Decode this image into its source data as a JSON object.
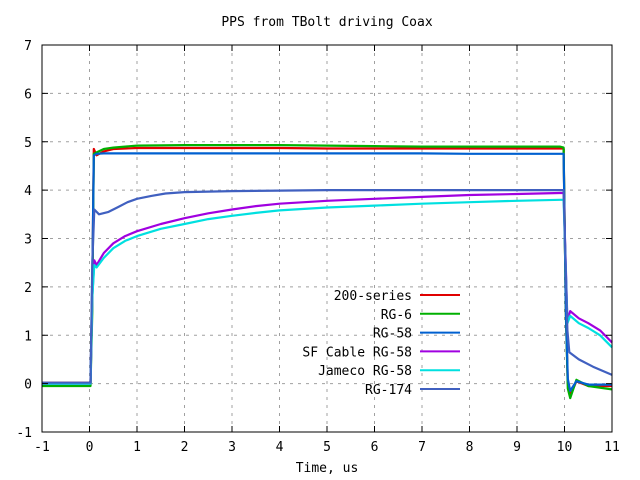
{
  "chart_data": {
    "type": "line",
    "title": "PPS from TBolt driving Coax",
    "xlabel": "Time, us",
    "ylabel": "",
    "xlim": [
      -1,
      11
    ],
    "ylim": [
      -1,
      7
    ],
    "xticks": [
      -1,
      0,
      1,
      2,
      3,
      4,
      5,
      6,
      7,
      8,
      9,
      10,
      11
    ],
    "yticks": [
      -1,
      0,
      1,
      2,
      3,
      4,
      5,
      6,
      7
    ],
    "grid": true,
    "legend_position": "center-bottom",
    "series": [
      {
        "name": "200-series",
        "color": "#e00000",
        "points": [
          [
            -1,
            0.02
          ],
          [
            0.02,
            0.02
          ],
          [
            0.06,
            2.0
          ],
          [
            0.09,
            4.85
          ],
          [
            0.15,
            4.72
          ],
          [
            0.3,
            4.8
          ],
          [
            0.5,
            4.85
          ],
          [
            1,
            4.87
          ],
          [
            2,
            4.87
          ],
          [
            3,
            4.87
          ],
          [
            4,
            4.87
          ],
          [
            5,
            4.86
          ],
          [
            6,
            4.86
          ],
          [
            7,
            4.86
          ],
          [
            8,
            4.86
          ],
          [
            9,
            4.86
          ],
          [
            9.9,
            4.86
          ],
          [
            9.98,
            4.86
          ],
          [
            10.03,
            1.5
          ],
          [
            10.07,
            0.0
          ],
          [
            10.12,
            -0.25
          ],
          [
            10.25,
            0.05
          ],
          [
            10.5,
            -0.05
          ],
          [
            11,
            -0.05
          ]
        ]
      },
      {
        "name": "RG-6",
        "color": "#00b000",
        "points": [
          [
            -1,
            -0.05
          ],
          [
            0.02,
            -0.05
          ],
          [
            0.06,
            1.5
          ],
          [
            0.09,
            4.75
          ],
          [
            0.15,
            4.78
          ],
          [
            0.3,
            4.85
          ],
          [
            0.5,
            4.88
          ],
          [
            1,
            4.92
          ],
          [
            2,
            4.93
          ],
          [
            3,
            4.93
          ],
          [
            4,
            4.93
          ],
          [
            5,
            4.92
          ],
          [
            6,
            4.91
          ],
          [
            7,
            4.9
          ],
          [
            8,
            4.9
          ],
          [
            9,
            4.9
          ],
          [
            9.9,
            4.9
          ],
          [
            9.98,
            4.88
          ],
          [
            10.03,
            1.4
          ],
          [
            10.07,
            -0.1
          ],
          [
            10.12,
            -0.3
          ],
          [
            10.25,
            0.08
          ],
          [
            10.5,
            -0.05
          ],
          [
            11,
            -0.12
          ]
        ]
      },
      {
        "name": "RG-58",
        "color": "#0060d0",
        "points": [
          [
            -1,
            0.0
          ],
          [
            0.02,
            0.0
          ],
          [
            0.06,
            2.2
          ],
          [
            0.09,
            4.72
          ],
          [
            0.15,
            4.75
          ],
          [
            0.3,
            4.76
          ],
          [
            0.5,
            4.76
          ],
          [
            1,
            4.76
          ],
          [
            2,
            4.76
          ],
          [
            3,
            4.76
          ],
          [
            4,
            4.76
          ],
          [
            5,
            4.76
          ],
          [
            6,
            4.76
          ],
          [
            7,
            4.76
          ],
          [
            8,
            4.75
          ],
          [
            9,
            4.75
          ],
          [
            9.9,
            4.75
          ],
          [
            9.98,
            4.75
          ],
          [
            10.03,
            1.5
          ],
          [
            10.07,
            0.1
          ],
          [
            10.12,
            -0.15
          ],
          [
            10.25,
            0.05
          ],
          [
            10.5,
            -0.02
          ],
          [
            11,
            -0.02
          ]
        ]
      },
      {
        "name": "SF Cable RG-58",
        "color": "#a000e0",
        "points": [
          [
            -1,
            0.0
          ],
          [
            0.02,
            0.0
          ],
          [
            0.06,
            1.8
          ],
          [
            0.1,
            2.55
          ],
          [
            0.15,
            2.45
          ],
          [
            0.3,
            2.7
          ],
          [
            0.5,
            2.9
          ],
          [
            0.75,
            3.05
          ],
          [
            1,
            3.15
          ],
          [
            1.5,
            3.3
          ],
          [
            2,
            3.42
          ],
          [
            2.5,
            3.52
          ],
          [
            3,
            3.6
          ],
          [
            3.5,
            3.67
          ],
          [
            4,
            3.72
          ],
          [
            5,
            3.78
          ],
          [
            6,
            3.82
          ],
          [
            7,
            3.86
          ],
          [
            8,
            3.9
          ],
          [
            9,
            3.92
          ],
          [
            9.9,
            3.94
          ],
          [
            9.98,
            3.94
          ],
          [
            10.06,
            1.3
          ],
          [
            10.12,
            1.5
          ],
          [
            10.3,
            1.35
          ],
          [
            10.5,
            1.25
          ],
          [
            10.75,
            1.1
          ],
          [
            11,
            0.85
          ]
        ]
      },
      {
        "name": "Jameco RG-58",
        "color": "#00e0e0",
        "points": [
          [
            -1,
            0.0
          ],
          [
            0.02,
            0.0
          ],
          [
            0.06,
            1.8
          ],
          [
            0.1,
            2.45
          ],
          [
            0.15,
            2.4
          ],
          [
            0.3,
            2.6
          ],
          [
            0.5,
            2.8
          ],
          [
            0.75,
            2.95
          ],
          [
            1,
            3.05
          ],
          [
            1.5,
            3.2
          ],
          [
            2,
            3.3
          ],
          [
            2.5,
            3.4
          ],
          [
            3,
            3.47
          ],
          [
            3.5,
            3.53
          ],
          [
            4,
            3.58
          ],
          [
            5,
            3.64
          ],
          [
            6,
            3.68
          ],
          [
            7,
            3.72
          ],
          [
            8,
            3.75
          ],
          [
            9,
            3.78
          ],
          [
            9.9,
            3.8
          ],
          [
            9.98,
            3.8
          ],
          [
            10.06,
            1.25
          ],
          [
            10.12,
            1.4
          ],
          [
            10.3,
            1.25
          ],
          [
            10.5,
            1.15
          ],
          [
            10.75,
            1.0
          ],
          [
            11,
            0.75
          ]
        ]
      },
      {
        "name": "RG-174",
        "color": "#4060c0",
        "points": [
          [
            -1,
            0.02
          ],
          [
            0.02,
            0.02
          ],
          [
            0.06,
            2.5
          ],
          [
            0.1,
            3.6
          ],
          [
            0.2,
            3.5
          ],
          [
            0.4,
            3.55
          ],
          [
            0.6,
            3.65
          ],
          [
            0.8,
            3.75
          ],
          [
            1,
            3.82
          ],
          [
            1.3,
            3.88
          ],
          [
            1.6,
            3.93
          ],
          [
            2,
            3.96
          ],
          [
            3,
            3.98
          ],
          [
            4,
            3.99
          ],
          [
            5,
            4.0
          ],
          [
            6,
            4.0
          ],
          [
            7,
            4.0
          ],
          [
            8,
            4.0
          ],
          [
            9,
            4.0
          ],
          [
            9.9,
            4.0
          ],
          [
            9.98,
            4.0
          ],
          [
            10.06,
            1.1
          ],
          [
            10.1,
            0.65
          ],
          [
            10.3,
            0.5
          ],
          [
            10.6,
            0.35
          ],
          [
            11,
            0.18
          ]
        ]
      }
    ]
  }
}
